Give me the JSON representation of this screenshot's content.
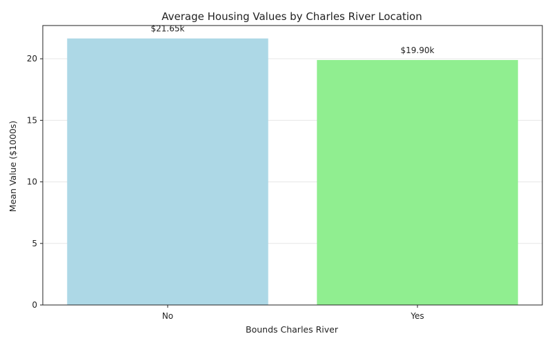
{
  "chart_data": {
    "type": "bar",
    "title": "Average Housing Values by Charles River Location",
    "xlabel": "Bounds Charles River",
    "ylabel": "Mean Value ($1000s)",
    "categories": [
      "No",
      "Yes"
    ],
    "values": [
      21.65,
      19.9
    ],
    "data_labels": [
      "$21.65k",
      "$19.90k"
    ],
    "colors": [
      "#add8e6",
      "#90ee90"
    ],
    "ylim": [
      0,
      22.7
    ],
    "yticks": [
      0,
      5,
      10,
      15,
      20
    ],
    "grid": true,
    "grid_axis": "y"
  }
}
